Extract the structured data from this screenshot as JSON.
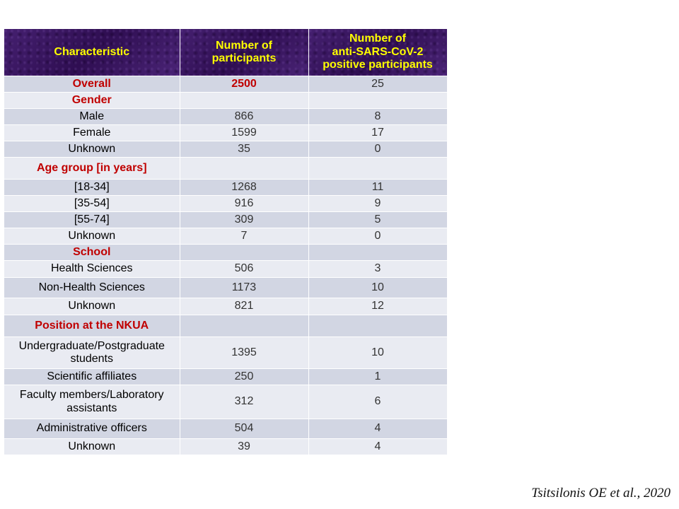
{
  "table": {
    "headers": {
      "characteristic": "Characteristic",
      "participants": "Number of participants",
      "positive_line1": "Number of",
      "positive_line2": "anti-SARS-CoV-2",
      "positive_line3": "positive participants"
    },
    "rows": [
      {
        "label": "Overall",
        "participants": "2500",
        "positive": "25"
      },
      {
        "label": "Gender",
        "participants": "",
        "positive": ""
      },
      {
        "label": "Male",
        "participants": "866",
        "positive": "8"
      },
      {
        "label": "Female",
        "participants": "1599",
        "positive": "17"
      },
      {
        "label": "Unknown",
        "participants": "35",
        "positive": "0"
      },
      {
        "label": "Age group [in years]",
        "participants": "",
        "positive": ""
      },
      {
        "label": "[18-34]",
        "participants": "1268",
        "positive": "11"
      },
      {
        "label": "[35-54]",
        "participants": "916",
        "positive": "9"
      },
      {
        "label": "[55-74]",
        "participants": "309",
        "positive": "5"
      },
      {
        "label": "Unknown",
        "participants": "7",
        "positive": "0"
      },
      {
        "label": "School",
        "participants": "",
        "positive": ""
      },
      {
        "label": "Health Sciences",
        "participants": "506",
        "positive": "3"
      },
      {
        "label": "Non-Health Sciences",
        "participants": "1173",
        "positive": "10"
      },
      {
        "label": "Unknown",
        "participants": "821",
        "positive": "12"
      },
      {
        "label": "Position at the NKUA",
        "participants": "",
        "positive": ""
      },
      {
        "label": "Undergraduate/Postgraduate students",
        "participants": "1395",
        "positive": "10"
      },
      {
        "label": "Scientific affiliates",
        "participants": "250",
        "positive": "1"
      },
      {
        "label": "Faculty members/Laboratory assistants",
        "participants": "312",
        "positive": "6"
      },
      {
        "label": "Administrative officers",
        "participants": "504",
        "positive": "4"
      },
      {
        "label": "Unknown",
        "participants": "39",
        "positive": "4"
      }
    ]
  },
  "citation": "Tsitsilonis OE et al., 2020",
  "colors": {
    "header_bg": "#3a1460",
    "header_text": "#ffff00",
    "section_text": "#c00000",
    "row_dark": "#d2d6e3",
    "row_light": "#e9ebf2"
  }
}
